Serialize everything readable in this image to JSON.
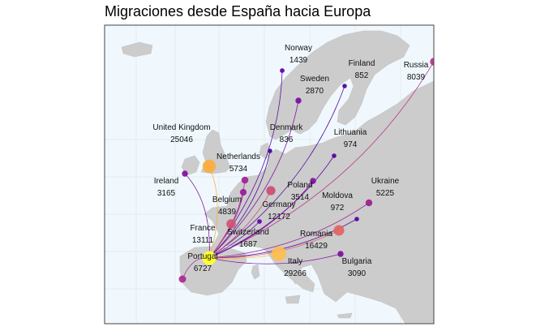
{
  "title": "Migraciones desde España hacia Europa",
  "colors": {
    "ocean": "#f0f8fd",
    "land": "#cccccc",
    "grid": "#dde8ef",
    "origin": "#ffff33",
    "low": "#2a0a91",
    "high": "#fdb54a"
  },
  "origin": {
    "name": "España"
  },
  "destinations": [
    {
      "name": "Norway",
      "value": "1439"
    },
    {
      "name": "Finland",
      "value": "852"
    },
    {
      "name": "Russia",
      "value": "8039"
    },
    {
      "name": "Sweden",
      "value": "2870"
    },
    {
      "name": "United Kingdom",
      "value": "25046"
    },
    {
      "name": "Denmark",
      "value": "836"
    },
    {
      "name": "Lithuania",
      "value": "974"
    },
    {
      "name": "Netherlands",
      "value": "5734"
    },
    {
      "name": "Ireland",
      "value": "3165"
    },
    {
      "name": "Belgium",
      "value": "4839"
    },
    {
      "name": "Poland",
      "value": "3514"
    },
    {
      "name": "Ukraine",
      "value": "5225"
    },
    {
      "name": "Moldova",
      "value": "972"
    },
    {
      "name": "Germany",
      "value": "12172"
    },
    {
      "name": "France",
      "value": "13111"
    },
    {
      "name": "Switzerland",
      "value": "1687"
    },
    {
      "name": "Romania",
      "value": "16429"
    },
    {
      "name": "Portugal",
      "value": "6727"
    },
    {
      "name": "Italy",
      "value": "29266"
    },
    {
      "name": "Bulgaria",
      "value": "3090"
    }
  ]
}
